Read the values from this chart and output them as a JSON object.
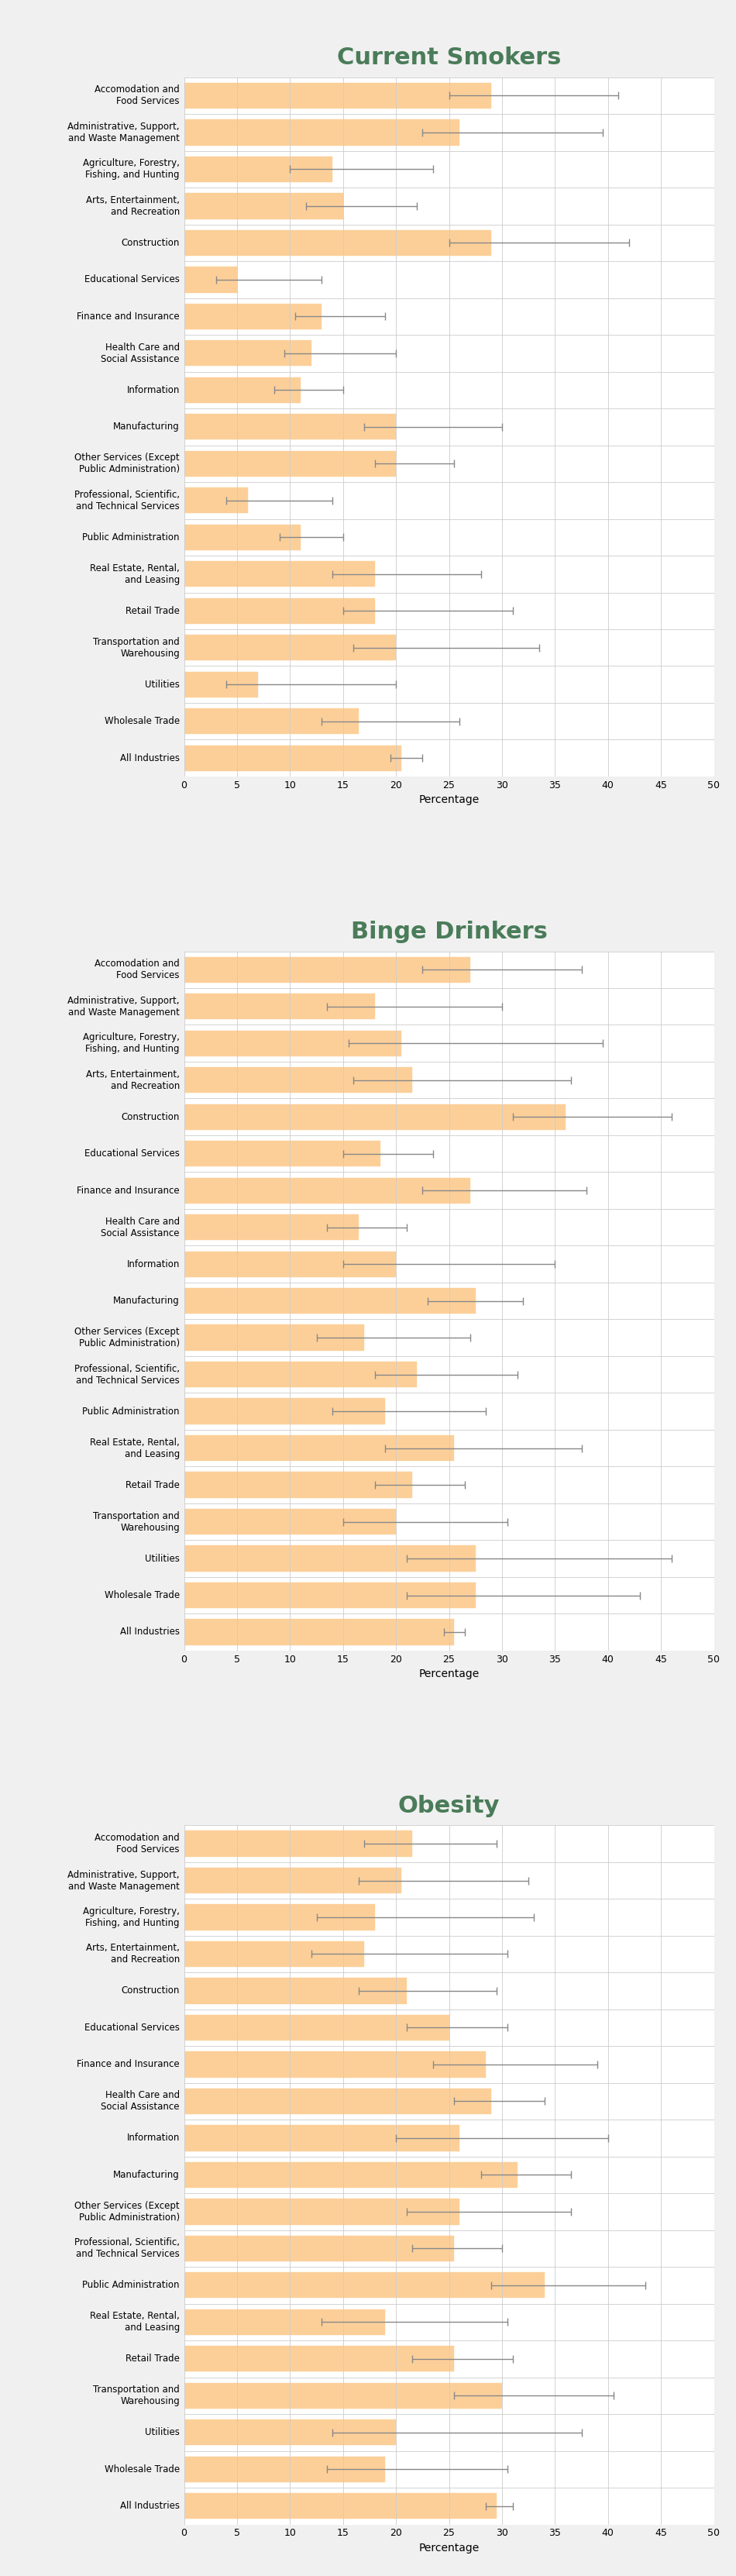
{
  "sections": [
    {
      "title": "Current Smokers",
      "categories": [
        "Accomodation and\nFood Services",
        "Administrative, Support,\nand Waste Management",
        "Agriculture, Forestry,\nFishing, and Hunting",
        "Arts, Entertainment,\nand Recreation",
        "Construction",
        "Educational Services",
        "Finance and Insurance",
        "Health Care and\nSocial Assistance",
        "Information",
        "Manufacturing",
        "Other Services (Except\nPublic Administration)",
        "Professional, Scientific,\nand Technical Services",
        "Public Administration",
        "Real Estate, Rental,\nand Leasing",
        "Retail Trade",
        "Transportation and\nWarehousing",
        "Utilities",
        "Wholesale Trade",
        "All Industries"
      ],
      "values": [
        29.0,
        26.0,
        14.0,
        15.0,
        29.0,
        5.0,
        13.0,
        12.0,
        11.0,
        20.0,
        20.0,
        6.0,
        11.0,
        18.0,
        18.0,
        20.0,
        7.0,
        16.5,
        20.5
      ],
      "ci_lower": [
        25.0,
        22.5,
        10.0,
        11.5,
        25.0,
        3.0,
        10.5,
        9.5,
        8.5,
        17.0,
        18.0,
        4.0,
        9.0,
        14.0,
        15.0,
        16.0,
        4.0,
        13.0,
        19.5
      ],
      "ci_upper": [
        41.0,
        39.5,
        23.5,
        22.0,
        42.0,
        13.0,
        19.0,
        20.0,
        15.0,
        30.0,
        25.5,
        14.0,
        15.0,
        28.0,
        31.0,
        33.5,
        20.0,
        26.0,
        22.5
      ]
    },
    {
      "title": "Binge Drinkers",
      "categories": [
        "Accomodation and\nFood Services",
        "Administrative, Support,\nand Waste Management",
        "Agriculture, Forestry,\nFishing, and Hunting",
        "Arts, Entertainment,\nand Recreation",
        "Construction",
        "Educational Services",
        "Finance and Insurance",
        "Health Care and\nSocial Assistance",
        "Information",
        "Manufacturing",
        "Other Services (Except\nPublic Administration)",
        "Professional, Scientific,\nand Technical Services",
        "Public Administration",
        "Real Estate, Rental,\nand Leasing",
        "Retail Trade",
        "Transportation and\nWarehousing",
        "Utilities",
        "Wholesale Trade",
        "All Industries"
      ],
      "values": [
        27.0,
        18.0,
        20.5,
        21.5,
        36.0,
        18.5,
        27.0,
        16.5,
        20.0,
        27.5,
        17.0,
        22.0,
        19.0,
        25.5,
        21.5,
        20.0,
        27.5,
        27.5,
        25.5
      ],
      "ci_lower": [
        22.5,
        13.5,
        15.5,
        16.0,
        31.0,
        15.0,
        22.5,
        13.5,
        15.0,
        23.0,
        12.5,
        18.0,
        14.0,
        19.0,
        18.0,
        15.0,
        21.0,
        21.0,
        24.5
      ],
      "ci_upper": [
        37.5,
        30.0,
        39.5,
        36.5,
        46.0,
        23.5,
        38.0,
        21.0,
        35.0,
        32.0,
        27.0,
        31.5,
        28.5,
        37.5,
        26.5,
        30.5,
        46.0,
        43.0,
        26.5
      ]
    },
    {
      "title": "Obesity",
      "categories": [
        "Accomodation and\nFood Services",
        "Administrative, Support,\nand Waste Management",
        "Agriculture, Forestry,\nFishing, and Hunting",
        "Arts, Entertainment,\nand Recreation",
        "Construction",
        "Educational Services",
        "Finance and Insurance",
        "Health Care and\nSocial Assistance",
        "Information",
        "Manufacturing",
        "Other Services (Except\nPublic Administration)",
        "Professional, Scientific,\nand Technical Services",
        "Public Administration",
        "Real Estate, Rental,\nand Leasing",
        "Retail Trade",
        "Transportation and\nWarehousing",
        "Utilities",
        "Wholesale Trade",
        "All Industries"
      ],
      "values": [
        21.5,
        20.5,
        18.0,
        17.0,
        21.0,
        25.0,
        28.5,
        29.0,
        26.0,
        31.5,
        26.0,
        25.5,
        34.0,
        19.0,
        25.5,
        30.0,
        20.0,
        19.0,
        29.5
      ],
      "ci_lower": [
        17.0,
        16.5,
        12.5,
        12.0,
        16.5,
        21.0,
        23.5,
        25.5,
        20.0,
        28.0,
        21.0,
        21.5,
        29.0,
        13.0,
        21.5,
        25.5,
        14.0,
        13.5,
        28.5
      ],
      "ci_upper": [
        29.5,
        32.5,
        33.0,
        30.5,
        29.5,
        30.5,
        39.0,
        34.0,
        40.0,
        36.5,
        36.5,
        30.0,
        43.5,
        30.5,
        31.0,
        40.5,
        37.5,
        30.5,
        31.0
      ]
    }
  ],
  "bar_color": "#FCCF99",
  "bar_edge_color": "#FCCF99",
  "error_color": "#888888",
  "title_color": "#4a7c59",
  "background_color": "#f0f0f0",
  "plot_bg_color": "#ffffff",
  "xlabel": "Percentage",
  "xlim": [
    0,
    50
  ],
  "xticks": [
    0,
    5,
    10,
    15,
    20,
    25,
    30,
    35,
    40,
    45,
    50
  ],
  "title_fontsize": 22,
  "label_fontsize": 8.5,
  "tick_fontsize": 9,
  "bar_height": 0.7
}
